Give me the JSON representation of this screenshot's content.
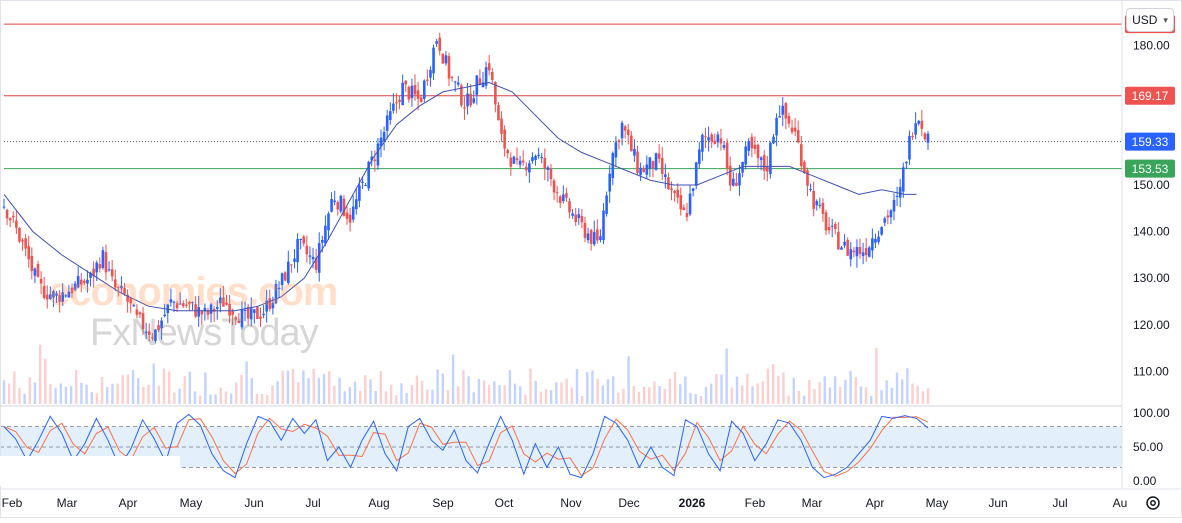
{
  "currency": {
    "label": "USD"
  },
  "watermark": {
    "line1": "economies.com",
    "line2": "FxNewsToday"
  },
  "colors": {
    "up": "#2962ff",
    "down": "#ef5350",
    "ma": "#3f51b5",
    "res_line": "#e04040",
    "sup_line": "#3aa45a",
    "last_price": "#2962ff",
    "k_line": "#2962ff",
    "d_line": "#ff7043",
    "osc_band": "#e3f0fb"
  },
  "price_axis": {
    "ticks": [
      "180.00",
      "170.00",
      "160.00",
      "150.00",
      "140.00",
      "130.00",
      "120.00",
      "110.00"
    ]
  },
  "osc_axis": {
    "ticks": [
      "100.00",
      "50.00",
      "0.00"
    ]
  },
  "levels": [
    {
      "label": "184.55",
      "value": 184.55,
      "kind": "resistance"
    },
    {
      "label": "169.17",
      "value": 169.17,
      "kind": "resistance"
    },
    {
      "label": "159.33",
      "value": 159.33,
      "kind": "last"
    },
    {
      "label": "153.53",
      "value": 153.53,
      "kind": "support"
    }
  ],
  "time_axis": [
    {
      "label": "Feb",
      "bold": false
    },
    {
      "label": "Mar",
      "bold": false
    },
    {
      "label": "Apr",
      "bold": false
    },
    {
      "label": "May",
      "bold": false
    },
    {
      "label": "Jun",
      "bold": false
    },
    {
      "label": "Jul",
      "bold": false
    },
    {
      "label": "Aug",
      "bold": false
    },
    {
      "label": "Sep",
      "bold": false
    },
    {
      "label": "Oct",
      "bold": false
    },
    {
      "label": "Nov",
      "bold": false
    },
    {
      "label": "Dec",
      "bold": false
    },
    {
      "label": "2026",
      "bold": true
    },
    {
      "label": "Feb",
      "bold": false
    },
    {
      "label": "Mar",
      "bold": false
    },
    {
      "label": "Apr",
      "bold": false
    },
    {
      "label": "May",
      "bold": false
    },
    {
      "label": "Jun",
      "bold": false
    },
    {
      "label": "Jul",
      "bold": false
    },
    {
      "label": "Au",
      "bold": false
    }
  ],
  "chart_data": {
    "type": "candlestick",
    "y_range": [
      103,
      188
    ],
    "osc_range": [
      0,
      100
    ],
    "osc_band": [
      20,
      80
    ],
    "months_x": [
      "Feb",
      "Mar",
      "Apr",
      "May",
      "Jun",
      "Jul",
      "Aug",
      "Sep",
      "Oct",
      "Nov",
      "Dec",
      "2026",
      "Feb",
      "Mar",
      "Apr",
      "May",
      "Jun",
      "Jul",
      "Au"
    ],
    "price_path": [
      [
        0,
        146
      ],
      [
        3,
        138
      ],
      [
        6,
        128
      ],
      [
        9,
        126
      ],
      [
        12,
        128
      ],
      [
        15,
        130
      ],
      [
        17,
        135
      ],
      [
        19,
        128
      ],
      [
        21,
        126
      ],
      [
        23,
        121
      ],
      [
        26,
        118
      ],
      [
        29,
        125
      ],
      [
        32,
        124
      ],
      [
        35,
        122
      ],
      [
        38,
        125
      ],
      [
        40,
        123
      ],
      [
        42,
        121
      ],
      [
        45,
        123
      ],
      [
        48,
        129
      ],
      [
        51,
        137
      ],
      [
        54,
        133
      ],
      [
        57,
        148
      ],
      [
        60,
        143
      ],
      [
        63,
        153
      ],
      [
        66,
        162
      ],
      [
        69,
        171
      ],
      [
        72,
        168
      ],
      [
        75,
        182
      ],
      [
        77,
        174
      ],
      [
        80,
        167
      ],
      [
        82,
        172
      ],
      [
        84,
        176
      ],
      [
        86,
        160
      ],
      [
        89,
        153
      ],
      [
        92,
        157
      ],
      [
        94,
        153
      ],
      [
        97,
        146
      ],
      [
        100,
        141
      ],
      [
        103,
        137
      ],
      [
        105,
        155
      ],
      [
        107,
        163
      ],
      [
        110,
        153
      ],
      [
        113,
        155
      ],
      [
        116,
        147
      ],
      [
        118,
        143
      ],
      [
        121,
        160
      ],
      [
        124,
        161
      ],
      [
        126,
        149
      ],
      [
        129,
        158
      ],
      [
        132,
        153
      ],
      [
        134,
        167
      ],
      [
        137,
        161
      ],
      [
        140,
        147
      ],
      [
        143,
        140
      ],
      [
        146,
        136
      ],
      [
        149,
        136
      ],
      [
        152,
        142
      ],
      [
        155,
        147
      ],
      [
        156,
        155
      ],
      [
        158,
        166
      ],
      [
        160,
        160
      ]
    ],
    "ma_path": [
      [
        0,
        148
      ],
      [
        5,
        140
      ],
      [
        10,
        135
      ],
      [
        15,
        131
      ],
      [
        20,
        127
      ],
      [
        25,
        124
      ],
      [
        30,
        123
      ],
      [
        35,
        123
      ],
      [
        40,
        123
      ],
      [
        44,
        124
      ],
      [
        48,
        126
      ],
      [
        52,
        130
      ],
      [
        56,
        138
      ],
      [
        60,
        147
      ],
      [
        64,
        156
      ],
      [
        68,
        163
      ],
      [
        72,
        167
      ],
      [
        76,
        170
      ],
      [
        80,
        171
      ],
      [
        84,
        172
      ],
      [
        88,
        170
      ],
      [
        92,
        165
      ],
      [
        96,
        160
      ],
      [
        100,
        157
      ],
      [
        104,
        155
      ],
      [
        108,
        153
      ],
      [
        112,
        151
      ],
      [
        116,
        150
      ],
      [
        120,
        150
      ],
      [
        124,
        152
      ],
      [
        128,
        154
      ],
      [
        132,
        154
      ],
      [
        136,
        154
      ],
      [
        140,
        152
      ],
      [
        144,
        150
      ],
      [
        148,
        148
      ],
      [
        152,
        149
      ],
      [
        156,
        148
      ],
      [
        158,
        148
      ]
    ],
    "osc_k_path": [
      [
        0,
        80
      ],
      [
        2,
        62
      ],
      [
        4,
        30
      ],
      [
        6,
        60
      ],
      [
        8,
        95
      ],
      [
        10,
        70
      ],
      [
        12,
        30
      ],
      [
        14,
        55
      ],
      [
        16,
        92
      ],
      [
        18,
        60
      ],
      [
        20,
        20
      ],
      [
        22,
        48
      ],
      [
        24,
        90
      ],
      [
        26,
        62
      ],
      [
        28,
        28
      ],
      [
        30,
        85
      ],
      [
        32,
        98
      ],
      [
        34,
        82
      ],
      [
        36,
        40
      ],
      [
        38,
        15
      ],
      [
        40,
        5
      ],
      [
        42,
        55
      ],
      [
        44,
        95
      ],
      [
        46,
        88
      ],
      [
        48,
        60
      ],
      [
        50,
        92
      ],
      [
        52,
        70
      ],
      [
        54,
        90
      ],
      [
        56,
        30
      ],
      [
        58,
        50
      ],
      [
        60,
        20
      ],
      [
        62,
        60
      ],
      [
        64,
        88
      ],
      [
        66,
        40
      ],
      [
        68,
        15
      ],
      [
        70,
        80
      ],
      [
        72,
        92
      ],
      [
        74,
        60
      ],
      [
        76,
        45
      ],
      [
        78,
        75
      ],
      [
        80,
        30
      ],
      [
        82,
        12
      ],
      [
        84,
        55
      ],
      [
        86,
        95
      ],
      [
        88,
        60
      ],
      [
        90,
        10
      ],
      [
        92,
        55
      ],
      [
        94,
        20
      ],
      [
        96,
        50
      ],
      [
        98,
        10
      ],
      [
        100,
        5
      ],
      [
        102,
        40
      ],
      [
        104,
        95
      ],
      [
        106,
        85
      ],
      [
        108,
        60
      ],
      [
        110,
        20
      ],
      [
        112,
        50
      ],
      [
        114,
        20
      ],
      [
        116,
        8
      ],
      [
        118,
        90
      ],
      [
        120,
        80
      ],
      [
        122,
        40
      ],
      [
        124,
        15
      ],
      [
        126,
        88
      ],
      [
        128,
        70
      ],
      [
        130,
        30
      ],
      [
        132,
        55
      ],
      [
        134,
        90
      ],
      [
        136,
        85
      ],
      [
        138,
        60
      ],
      [
        140,
        20
      ],
      [
        142,
        5
      ],
      [
        144,
        10
      ],
      [
        146,
        20
      ],
      [
        148,
        40
      ],
      [
        150,
        60
      ],
      [
        152,
        95
      ],
      [
        154,
        92
      ],
      [
        156,
        96
      ],
      [
        158,
        92
      ],
      [
        160,
        78
      ]
    ],
    "volume_bars": 180
  }
}
